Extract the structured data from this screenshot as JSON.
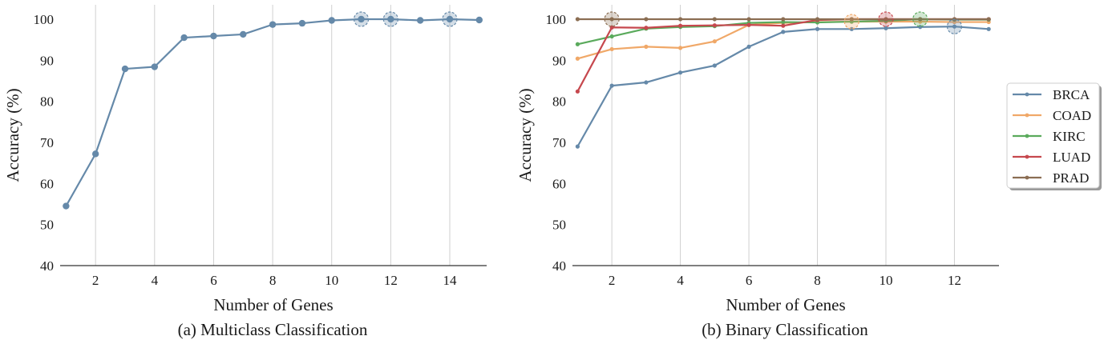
{
  "chart_data": [
    {
      "type": "line",
      "caption": "(a) Multiclass Classification",
      "xlabel": "Number of Genes",
      "ylabel": "Accuracy (%)",
      "xlim": [
        0.8,
        15.25
      ],
      "ylim": [
        40,
        103.5
      ],
      "xticks": [
        2,
        4,
        6,
        8,
        10,
        12,
        14
      ],
      "yticks": [
        40,
        50,
        60,
        70,
        80,
        90,
        100
      ],
      "grid": "vertical",
      "series": [
        {
          "color": "#6589a9",
          "x": [
            1,
            2,
            3,
            4,
            5,
            6,
            7,
            8,
            9,
            10,
            11,
            12,
            13,
            14,
            15
          ],
          "y": [
            54.5,
            67.2,
            87.9,
            88.4,
            95.5,
            95.9,
            96.3,
            98.7,
            99.0,
            99.7,
            100.0,
            100.0,
            99.7,
            100.0,
            99.8
          ]
        }
      ],
      "highlights": [
        {
          "x": 11,
          "y": 100.0,
          "color": "#6589a9"
        },
        {
          "x": 12,
          "y": 100.0,
          "color": "#6589a9"
        },
        {
          "x": 14,
          "y": 100.0,
          "color": "#6589a9"
        }
      ]
    },
    {
      "type": "line",
      "caption": "(b) Binary Classification",
      "xlabel": "Number of Genes",
      "ylabel": "Accuracy (%)",
      "xlim": [
        0.85,
        13.3
      ],
      "ylim": [
        40,
        103.5
      ],
      "xticks": [
        2,
        4,
        6,
        8,
        10,
        12
      ],
      "yticks": [
        40,
        50,
        60,
        70,
        80,
        90,
        100
      ],
      "grid": "vertical",
      "legend_position": "right",
      "series": [
        {
          "name": "BRCA",
          "color": "#6589a9",
          "x": [
            1,
            2,
            3,
            4,
            5,
            6,
            7,
            8,
            9,
            10,
            11,
            12,
            13
          ],
          "y": [
            69.0,
            83.8,
            84.6,
            87.0,
            88.7,
            93.3,
            96.9,
            97.6,
            97.6,
            97.8,
            98.1,
            98.2,
            97.6
          ]
        },
        {
          "name": "COAD",
          "color": "#f0a868",
          "x": [
            1,
            2,
            3,
            4,
            5,
            6,
            7,
            8,
            9,
            10,
            11,
            12,
            13
          ],
          "y": [
            90.4,
            92.7,
            93.3,
            93.0,
            94.6,
            98.6,
            99.1,
            99.3,
            99.4,
            99.4,
            99.4,
            99.3,
            99.3
          ]
        },
        {
          "name": "KIRC",
          "color": "#5aaa5c",
          "x": [
            1,
            2,
            3,
            4,
            5,
            6,
            7,
            8,
            9,
            10,
            11,
            12,
            13
          ],
          "y": [
            93.9,
            95.8,
            97.7,
            98.1,
            98.3,
            99.1,
            99.3,
            99.2,
            99.4,
            99.6,
            100.0,
            99.9,
            99.9
          ]
        },
        {
          "name": "LUAD",
          "color": "#c6484e",
          "x": [
            1,
            2,
            3,
            4,
            5,
            6,
            7,
            8,
            9,
            10,
            11,
            12,
            13
          ],
          "y": [
            82.4,
            98.0,
            97.9,
            98.4,
            98.5,
            98.6,
            98.4,
            99.8,
            100.0,
            100.0,
            100.0,
            100.0,
            100.0
          ]
        },
        {
          "name": "PRAD",
          "color": "#8b6e53",
          "x": [
            1,
            2,
            3,
            4,
            5,
            6,
            7,
            8,
            9,
            10,
            11,
            12,
            13
          ],
          "y": [
            100.0,
            100.0,
            100.0,
            100.0,
            100.0,
            100.0,
            100.0,
            100.0,
            100.0,
            100.0,
            100.0,
            100.0,
            100.0
          ]
        }
      ],
      "highlights": [
        {
          "series": "PRAD",
          "x": 2,
          "y": 100.0,
          "color": "#8b6e53"
        },
        {
          "series": "COAD",
          "x": 9,
          "y": 99.4,
          "color": "#f0a868"
        },
        {
          "series": "LUAD",
          "x": 10,
          "y": 100.0,
          "color": "#c6484e"
        },
        {
          "series": "KIRC",
          "x": 11,
          "y": 100.0,
          "color": "#5aaa5c"
        },
        {
          "series": "BRCA",
          "x": 12,
          "y": 98.2,
          "color": "#6589a9"
        }
      ]
    }
  ]
}
